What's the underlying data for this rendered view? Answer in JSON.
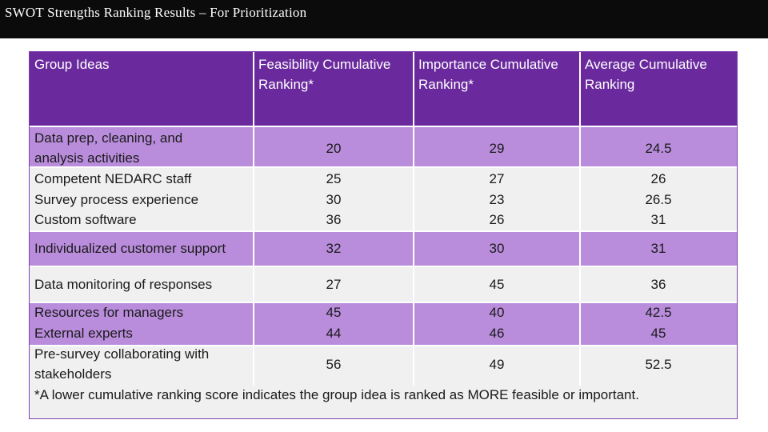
{
  "title": "SWOT Strengths Ranking Results – For Prioritization",
  "headers": {
    "col1": "Group Ideas",
    "col2_line1": "Feasibility Cumulative",
    "col2_line2": "Ranking*",
    "col3_line1": "Importance Cumulative",
    "col3_line2": "Ranking*",
    "col4_line1": "Average Cumulative",
    "col4_line2": "Ranking"
  },
  "rows": [
    {
      "idea_line1": "Data prep, cleaning, and",
      "idea_line2": "analysis activities",
      "feasibility": "20",
      "importance": "29",
      "average": "24.5"
    },
    {
      "idea": "Competent NEDARC staff",
      "feasibility": "25",
      "importance": "27",
      "average": "26"
    },
    {
      "idea": "Survey process experience",
      "feasibility": "30",
      "importance": "23",
      "average": "26.5"
    },
    {
      "idea": "Custom software",
      "feasibility": "36",
      "importance": "26",
      "average": "31"
    },
    {
      "idea": "Individualized customer support",
      "feasibility": "32",
      "importance": "30",
      "average": "31"
    },
    {
      "idea": "Data monitoring of responses",
      "feasibility": "27",
      "importance": "45",
      "average": "36"
    },
    {
      "idea": "Resources for managers",
      "feasibility": "45",
      "importance": "40",
      "average": "42.5"
    },
    {
      "idea": "External experts",
      "feasibility": "44",
      "importance": "46",
      "average": "45"
    },
    {
      "idea_line1": "Pre-survey collaborating with",
      "idea_line2": "stakeholders",
      "feasibility": "56",
      "importance": "49",
      "average": "52.5"
    }
  ],
  "footnote": "*A lower cumulative ranking score indicates the group idea is ranked as MORE feasible or important.",
  "colors": {
    "header": "#6a2a9e",
    "band_dark": "#b98ddc",
    "band_light": "#f0f0f0",
    "titlebar": "#0b0b0b"
  }
}
